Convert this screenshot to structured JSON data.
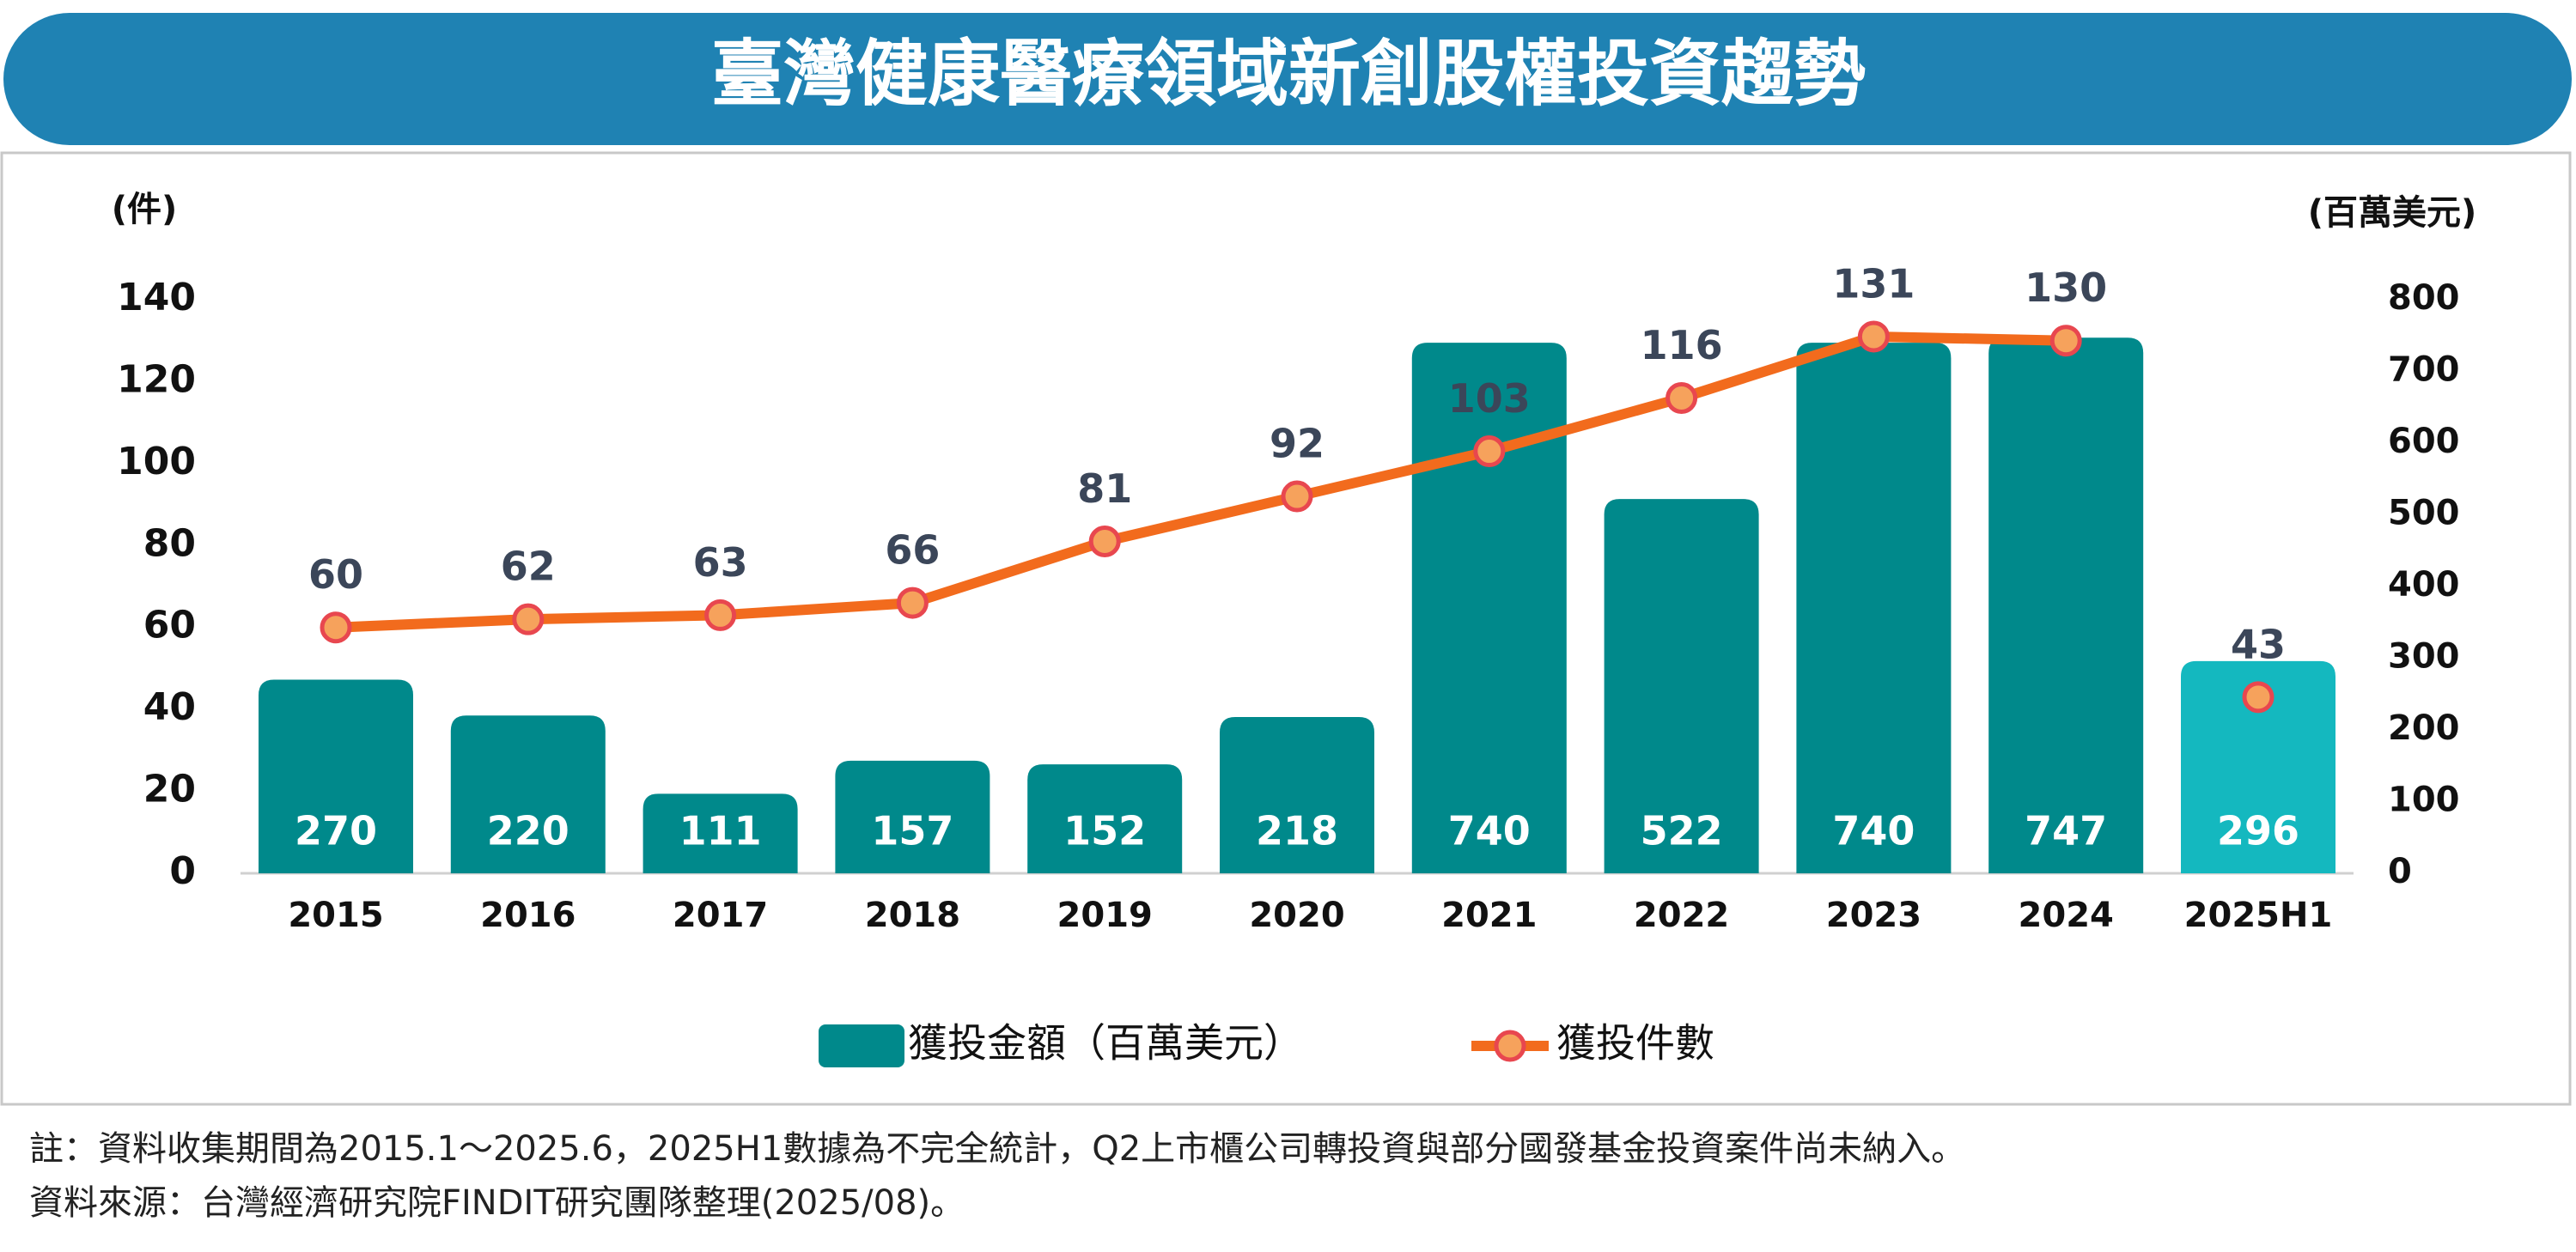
{
  "chart_data": {
    "type": "bar_line",
    "title": "臺灣健康醫療領域新創股權投資趨勢",
    "y_label": "(件)",
    "y2_label": "(百萬美元)",
    "categories": [
      "2015",
      "2016",
      "2017",
      "2018",
      "2019",
      "2020",
      "2021",
      "2022",
      "2023",
      "2024",
      "2025H1"
    ],
    "series": [
      {
        "name": "獲投金額（百萬美元）",
        "type": "bar",
        "axis": "y2",
        "color": "#00898b",
        "colors": [
          "#00898b",
          "#00898b",
          "#00898b",
          "#00898b",
          "#00898b",
          "#00898b",
          "#00898b",
          "#00898b",
          "#00898b",
          "#00898b",
          "#14b8bf"
        ],
        "values": [
          270,
          220,
          111,
          157,
          152,
          218,
          740,
          522,
          740,
          747,
          296
        ]
      },
      {
        "name": "獲投件數",
        "type": "line",
        "axis": "y",
        "color": "#f26b1d",
        "marker_color": "#f6a25c",
        "marker_edge": "#e8474f",
        "last_point_unconnected": true,
        "values": [
          60,
          62,
          63,
          66,
          81,
          92,
          103,
          116,
          131,
          130,
          43
        ]
      }
    ],
    "ylim": [
      0,
      140
    ],
    "yticks": [
      0,
      20,
      40,
      60,
      80,
      100,
      120,
      140
    ],
    "y2lim": [
      0,
      800
    ],
    "y2ticks": [
      0,
      100,
      200,
      300,
      400,
      500,
      600,
      700,
      800
    ]
  },
  "notes": [
    "註：資料收集期間為2015.1～2025.6，2025H1數據為不完全統計，Q2上市櫃公司轉投資與部分國發基金投資案件尚未納入。",
    "資料來源：台灣經濟研究院FINDIT研究團隊整理(2025/08)。"
  ]
}
